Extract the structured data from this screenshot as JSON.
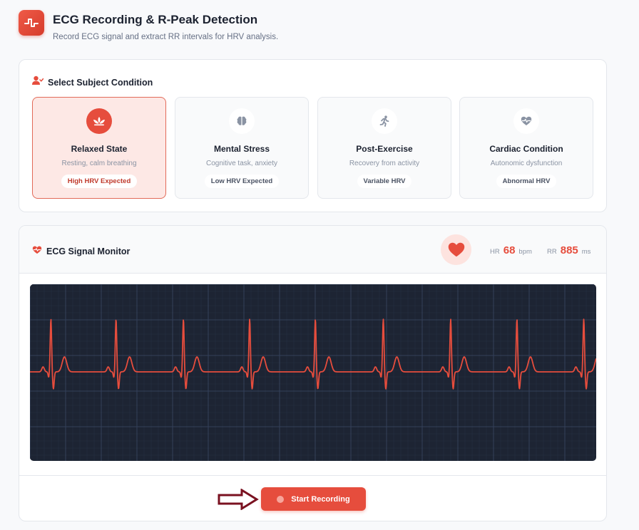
{
  "header": {
    "title": "ECG Recording & R-Peak Detection",
    "subtitle": "Record ECG signal and extract RR intervals for HRV analysis.",
    "icon": "waveform-icon"
  },
  "condition": {
    "title": "Select Subject Condition",
    "icon": "user-check-icon",
    "options": [
      {
        "title": "Relaxed State",
        "desc": "Resting, calm breathing",
        "badge": "High HRV Expected",
        "icon": "lotus-icon",
        "selected": true
      },
      {
        "title": "Mental Stress",
        "desc": "Cognitive task, anxiety",
        "badge": "Low HRV Expected",
        "icon": "brain-icon",
        "selected": false
      },
      {
        "title": "Post-Exercise",
        "desc": "Recovery from activity",
        "badge": "Variable HRV",
        "icon": "running-icon",
        "selected": false
      },
      {
        "title": "Cardiac Condition",
        "desc": "Autonomic dysfunction",
        "badge": "Abnormal HRV",
        "icon": "heart-pulse-icon",
        "selected": false
      }
    ]
  },
  "monitor": {
    "title": "ECG Signal Monitor",
    "icon": "heart-pulse-icon",
    "hr_label": "HR",
    "hr_value": "68",
    "hr_unit": "bpm",
    "rr_label": "RR",
    "rr_value": "885",
    "rr_unit": "ms",
    "peak_positions_fraction": [
      0.037,
      0.152,
      0.271,
      0.388,
      0.504,
      0.624,
      0.743,
      0.86,
      0.978
    ],
    "trace_color": "#e64d3d",
    "background_color": "#1d2433"
  },
  "footer": {
    "button_label": "Start Recording"
  },
  "colors": {
    "accent": "#e64d3d",
    "arrow": "#7a1120"
  }
}
